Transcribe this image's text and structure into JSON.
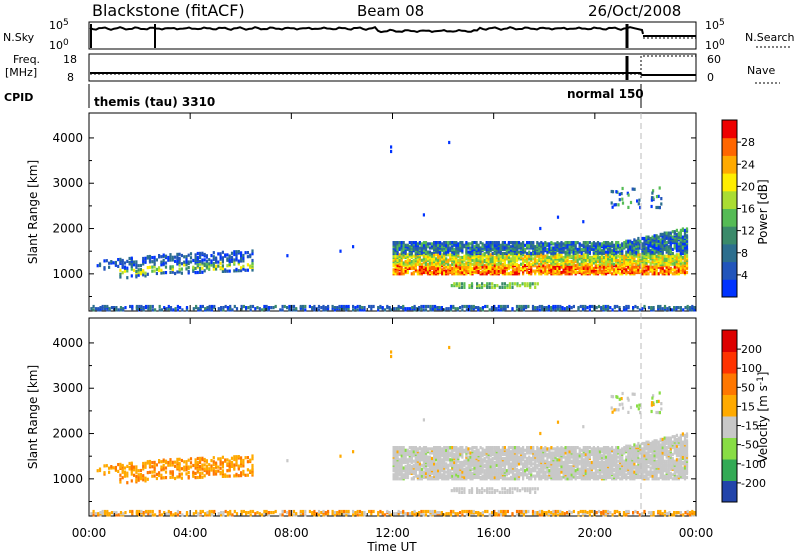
{
  "header": {
    "station": "Blackstone (fitACF)",
    "beam": "Beam 08",
    "date": "26/Oct/2008"
  },
  "top_panels": {
    "nsky_label": "N.Sky",
    "nsky_ticks": [
      "10^5",
      "10^0"
    ],
    "nsearch_label": "N.Search",
    "nsearch_ticks": [
      "10^5",
      "10^0"
    ],
    "freq_label_1": "Freq.",
    "freq_label_2": "[MHz]",
    "freq_ticks": [
      "18",
      "8"
    ],
    "nave_label": "Nave",
    "nave_ticks": [
      "60",
      "0"
    ],
    "cpid_label": "CPID",
    "cpid_segments": [
      {
        "name": "themis (tau) 3310",
        "start_hour": 0,
        "end_hour": 21.7
      },
      {
        "name": "normal 150",
        "start_hour": 21.7,
        "end_hour": 24
      }
    ]
  },
  "chart_data": [
    {
      "type": "heatmap",
      "title": "",
      "xlabel": "",
      "ylabel": "Slant Range [km]",
      "xlim": [
        0,
        24
      ],
      "ylim": [
        180,
        4550
      ],
      "yticks": [
        "4000",
        "3000",
        "2000",
        "1000"
      ],
      "colorbar": {
        "label": "Power [dB]",
        "ticks": [
          "28",
          "24",
          "20",
          "16",
          "12",
          "8",
          "4"
        ],
        "colors": [
          "#0033ff",
          "#2255bb",
          "#2c6e8e",
          "#3a8a6a",
          "#55bb55",
          "#aadd33",
          "#ffee00",
          "#ffaa00",
          "#ff6600",
          "#ee0000"
        ]
      },
      "regions": [
        {
          "name": "near-range ground band",
          "x": [
            0,
            24
          ],
          "range_km": [
            200,
            300
          ],
          "value_dB": "4-12"
        },
        {
          "name": "morning echo patch",
          "x": [
            0.3,
            6.5
          ],
          "range_km": [
            800,
            1300
          ],
          "value_dB": "4-20"
        },
        {
          "name": "main echo band",
          "x": [
            12,
            23.6
          ],
          "range_km": [
            1000,
            1800
          ],
          "value_dB": "8-28"
        },
        {
          "name": "far-range scatter",
          "x": [
            20.5,
            22.5
          ],
          "range_km": [
            2500,
            2900
          ],
          "value_dB": "4-16"
        }
      ]
    },
    {
      "type": "heatmap",
      "title": "",
      "xlabel": "Time UT",
      "ylabel": "Slant Range [km]",
      "xlim": [
        0,
        24
      ],
      "ylim": [
        180,
        4550
      ],
      "yticks": [
        "4000",
        "3000",
        "2000",
        "1000"
      ],
      "xticks": [
        "00:00",
        "04:00",
        "08:00",
        "12:00",
        "16:00",
        "20:00",
        "00:00"
      ],
      "colorbar": {
        "label": "Velocity [m s^-1]",
        "ticks": [
          "200",
          "100",
          "50",
          "15",
          "-15",
          "-50",
          "-100",
          "-200"
        ],
        "colors": [
          "#2244aa",
          "#33aa55",
          "#88dd44",
          "#c8c8c8",
          "#ffaa00",
          "#ff7700",
          "#ff3300",
          "#dd0000"
        ]
      },
      "regions": [
        {
          "name": "near-range ground band",
          "x": [
            0,
            24
          ],
          "range_km": [
            200,
            300
          ],
          "value_ms": "-50 to -15"
        },
        {
          "name": "morning echo patch",
          "x": [
            0.3,
            6.5
          ],
          "range_km": [
            800,
            1300
          ],
          "value_ms": "-50 to -15"
        },
        {
          "name": "main echo band (ground scatter)",
          "x": [
            12,
            23.6
          ],
          "range_km": [
            1000,
            1800
          ],
          "value_ms": "-15 to 15"
        },
        {
          "name": "far-range scatter",
          "x": [
            20.5,
            22.5
          ],
          "range_km": [
            2500,
            2900
          ],
          "value_ms": "-15 to 15"
        }
      ]
    }
  ]
}
